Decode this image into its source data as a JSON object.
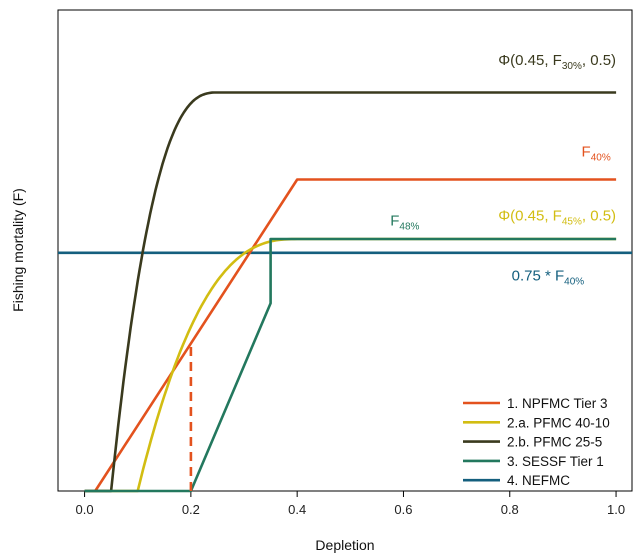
{
  "chart_data": {
    "type": "line",
    "xlabel": "Depletion",
    "ylabel": "Fishing mortality (F)",
    "xlim": [
      -0.05,
      1.03
    ],
    "ylim": [
      0,
      1.05
    ],
    "xticks": [
      0.0,
      0.2,
      0.4,
      0.6,
      0.8,
      1.0
    ],
    "xtick_labels": [
      "0.0",
      "0.2",
      "0.4",
      "0.6",
      "0.8",
      "1.0"
    ],
    "yticks_shown": false,
    "grid": false,
    "legend_position": "bottom-right",
    "series": [
      {
        "name": "1. NPFMC Tier 3",
        "color": "#e3521e",
        "points": [
          [
            0.02,
            0.0
          ],
          [
            0.4,
            0.68
          ],
          [
            1.0,
            0.68
          ]
        ]
      },
      {
        "name": "2.a. PFMC 40-10",
        "color": "#d2bd12",
        "shape": "phi_curve",
        "x0": 0.1,
        "x1": 0.4,
        "f_max": 0.55,
        "curvature": 1.6
      },
      {
        "name": "2.b. PFMC 25-5",
        "color": "#3a3a1e",
        "shape": "phi_curve",
        "x0": 0.05,
        "x1": 0.25,
        "f_max": 0.87,
        "curvature": 1.6
      },
      {
        "name": "3. SESSF Tier 1",
        "color": "#23785e",
        "points": [
          [
            0.0,
            0.0
          ],
          [
            0.2,
            0.0
          ],
          [
            0.35,
            0.41
          ],
          [
            0.35,
            0.55
          ],
          [
            1.0,
            0.55
          ]
        ]
      },
      {
        "name": "4. NEFMC",
        "color": "#145f7e",
        "points": [
          [
            -0.05,
            0.52
          ],
          [
            1.03,
            0.52
          ]
        ]
      }
    ],
    "extra_marks": [
      {
        "name": "npfmc-cutoff-dashed",
        "color": "#e3521e",
        "dash": true,
        "points": [
          [
            0.2,
            0.0
          ],
          [
            0.2,
            0.32
          ]
        ]
      }
    ],
    "annotations": [
      {
        "id": "phi30",
        "main": "Φ(0.45, F",
        "sub": "30%",
        "tail": ", 0.5)",
        "x": 1.0,
        "y": 0.93,
        "anchor": "end",
        "color": "#3a3a1e"
      },
      {
        "id": "f40",
        "main": "F",
        "sub": "40%",
        "tail": "",
        "x": 0.99,
        "y": 0.73,
        "anchor": "end",
        "color": "#e3521e"
      },
      {
        "id": "phi45",
        "main": "Φ(0.45, F",
        "sub": "45%",
        "tail": ", 0.5)",
        "x": 1.0,
        "y": 0.59,
        "anchor": "end",
        "color": "#d2bd12"
      },
      {
        "id": "f48",
        "main": "F",
        "sub": "48%",
        "tail": "",
        "x": 0.63,
        "y": 0.58,
        "anchor": "end",
        "color": "#23785e"
      },
      {
        "id": "f40x075",
        "main": "0.75 * F",
        "sub": "40%",
        "tail": "",
        "x": 0.94,
        "y": 0.46,
        "anchor": "end",
        "color": "#145f7e"
      }
    ]
  }
}
